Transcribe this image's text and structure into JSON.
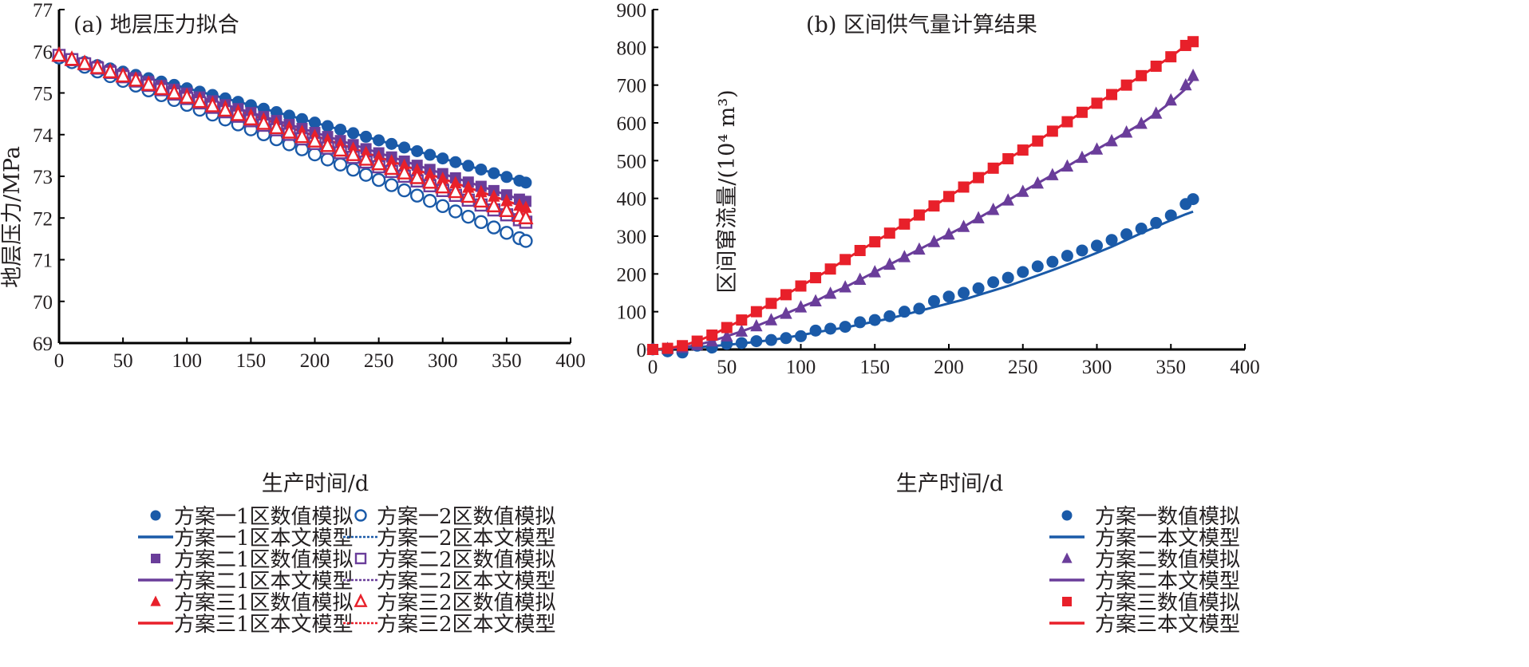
{
  "chart_data": [
    {
      "type": "line",
      "title": "(a) 地层压力拟合",
      "xlabel": "生产时间/d",
      "ylabel": "地层压力/MPa",
      "xlim": [
        0,
        400
      ],
      "ylim": [
        69,
        77
      ],
      "xticks": [
        "0",
        "50",
        "100",
        "150",
        "200",
        "250",
        "300",
        "350",
        "400"
      ],
      "yticks": [
        "69",
        "70",
        "71",
        "72",
        "73",
        "74",
        "75",
        "76",
        "77"
      ],
      "grid": false,
      "legend_position": "bottom",
      "x": [
        0,
        10,
        20,
        30,
        40,
        50,
        60,
        70,
        80,
        90,
        100,
        110,
        120,
        130,
        140,
        150,
        160,
        170,
        180,
        190,
        200,
        210,
        220,
        230,
        240,
        250,
        260,
        270,
        280,
        290,
        300,
        310,
        320,
        330,
        340,
        350,
        360,
        365
      ],
      "series": [
        {
          "name": "方案一1区数值模拟",
          "kind": "marker",
          "marker": "circle-filled",
          "color": "#1a5aa8",
          "start": 75.9,
          "end": 72.85
        },
        {
          "name": "方案一1区本文模型",
          "kind": "line",
          "dash": "solid",
          "color": "#1a5aa8",
          "start": 75.9,
          "end": 72.85
        },
        {
          "name": "方案二1区数值模拟",
          "kind": "marker",
          "marker": "square-filled",
          "color": "#6a3d9a",
          "start": 75.9,
          "end": 72.4
        },
        {
          "name": "方案二1区本文模型",
          "kind": "line",
          "dash": "solid",
          "color": "#6a3d9a",
          "start": 75.9,
          "end": 72.4
        },
        {
          "name": "方案三1区数值模拟",
          "kind": "marker",
          "marker": "triangle-filled",
          "color": "#e8202a",
          "start": 75.9,
          "end": 72.25
        },
        {
          "name": "方案三1区本文模型",
          "kind": "line",
          "dash": "solid",
          "color": "#e8202a",
          "start": 75.9,
          "end": 72.25
        },
        {
          "name": "方案一2区数值模拟",
          "kind": "marker",
          "marker": "circle-open",
          "color": "#1a5aa8",
          "start": 75.85,
          "end": 71.45
        },
        {
          "name": "方案一2区本文模型",
          "kind": "line",
          "dash": "dotted",
          "color": "#1a5aa8",
          "start": 75.85,
          "end": 71.45
        },
        {
          "name": "方案二2区数值模拟",
          "kind": "marker",
          "marker": "square-open",
          "color": "#6a3d9a",
          "start": 75.9,
          "end": 71.9
        },
        {
          "name": "方案二2区本文模型",
          "kind": "line",
          "dash": "dotted",
          "color": "#6a3d9a",
          "start": 75.9,
          "end": 71.9
        },
        {
          "name": "方案三2区数值模拟",
          "kind": "marker",
          "marker": "triangle-open",
          "color": "#e8202a",
          "start": 75.9,
          "end": 72.0
        },
        {
          "name": "方案三2区本文模型",
          "kind": "line",
          "dash": "dotted",
          "color": "#e8202a",
          "start": 75.9,
          "end": 72.0
        }
      ]
    },
    {
      "type": "line",
      "title": "(b) 区间供气量计算结果",
      "xlabel": "生产时间/d",
      "ylabel": "区间窜流量/(10⁴ m³)",
      "xlim": [
        0,
        400
      ],
      "ylim": [
        0,
        900
      ],
      "xticks": [
        "0",
        "50",
        "100",
        "150",
        "200",
        "250",
        "300",
        "350",
        "400"
      ],
      "yticks": [
        "0",
        "100",
        "200",
        "300",
        "400",
        "500",
        "600",
        "700",
        "800",
        "900"
      ],
      "grid": false,
      "legend_position": "bottom",
      "x": [
        0,
        10,
        20,
        30,
        40,
        50,
        60,
        70,
        80,
        90,
        100,
        110,
        120,
        130,
        140,
        150,
        160,
        170,
        180,
        190,
        200,
        210,
        220,
        230,
        240,
        250,
        260,
        270,
        280,
        290,
        300,
        310,
        320,
        330,
        340,
        350,
        360,
        365
      ],
      "series": [
        {
          "name": "方案一数值模拟",
          "kind": "marker",
          "marker": "circle-filled",
          "color": "#1a5aa8",
          "values": [
            0,
            -5,
            -8,
            10,
            5,
            15,
            17,
            22,
            25,
            30,
            35,
            50,
            55,
            60,
            72,
            78,
            88,
            100,
            108,
            128,
            140,
            150,
            162,
            178,
            190,
            205,
            220,
            232,
            248,
            262,
            275,
            290,
            305,
            320,
            335,
            355,
            385,
            398
          ]
        },
        {
          "name": "方案一本文模型",
          "kind": "line",
          "dash": "solid",
          "color": "#1a5aa8",
          "values": [
            0,
            2,
            4,
            6,
            9,
            12,
            16,
            20,
            25,
            31,
            38,
            45,
            52,
            58,
            66,
            74,
            82,
            92,
            102,
            112,
            122,
            132,
            144,
            156,
            168,
            182,
            196,
            210,
            225,
            240,
            256,
            272,
            290,
            308,
            325,
            342,
            358,
            365
          ]
        },
        {
          "name": "方案二数值模拟",
          "kind": "marker",
          "marker": "triangle-filled",
          "color": "#6a3d9a",
          "values": [
            0,
            2,
            5,
            12,
            22,
            35,
            48,
            62,
            78,
            95,
            112,
            128,
            148,
            165,
            185,
            205,
            225,
            245,
            265,
            285,
            305,
            325,
            348,
            370,
            395,
            418,
            440,
            462,
            485,
            508,
            530,
            552,
            575,
            598,
            625,
            660,
            700,
            725
          ]
        },
        {
          "name": "方案二本文模型",
          "kind": "line",
          "dash": "solid",
          "color": "#6a3d9a",
          "values": [
            0,
            2,
            5,
            12,
            22,
            35,
            48,
            62,
            78,
            95,
            112,
            128,
            148,
            165,
            185,
            205,
            225,
            245,
            265,
            285,
            305,
            325,
            348,
            370,
            395,
            418,
            440,
            462,
            485,
            508,
            530,
            552,
            575,
            598,
            625,
            655,
            690,
            715
          ]
        },
        {
          "name": "方案三数值模拟",
          "kind": "marker",
          "marker": "square-filled",
          "color": "#e8202a",
          "values": [
            0,
            3,
            10,
            22,
            38,
            58,
            78,
            100,
            122,
            145,
            168,
            190,
            213,
            238,
            262,
            285,
            308,
            332,
            356,
            380,
            405,
            430,
            455,
            480,
            505,
            528,
            552,
            578,
            603,
            628,
            652,
            675,
            700,
            725,
            750,
            775,
            805,
            815
          ]
        },
        {
          "name": "方案三本文模型",
          "kind": "line",
          "dash": "solid",
          "color": "#e8202a",
          "values": [
            0,
            3,
            10,
            22,
            38,
            58,
            78,
            100,
            122,
            145,
            168,
            190,
            213,
            238,
            262,
            285,
            308,
            332,
            356,
            380,
            405,
            430,
            455,
            480,
            505,
            528,
            552,
            578,
            603,
            628,
            652,
            675,
            700,
            725,
            750,
            775,
            805,
            815
          ]
        }
      ]
    }
  ],
  "legend_a": {
    "left": [
      "方案一1区数值模拟",
      "方案一1区本文模型",
      "方案二1区数值模拟",
      "方案二1区本文模型",
      "方案三1区数值模拟",
      "方案三1区本文模型"
    ],
    "right": [
      "方案一2区数值模拟",
      "方案一2区本文模型",
      "方案二2区数值模拟",
      "方案二2区本文模型",
      "方案三2区数值模拟",
      "方案三2区本文模型"
    ]
  },
  "legend_b": [
    "方案一数值模拟",
    "方案一本文模型",
    "方案二数值模拟",
    "方案二本文模型",
    "方案三数值模拟",
    "方案三本文模型"
  ]
}
